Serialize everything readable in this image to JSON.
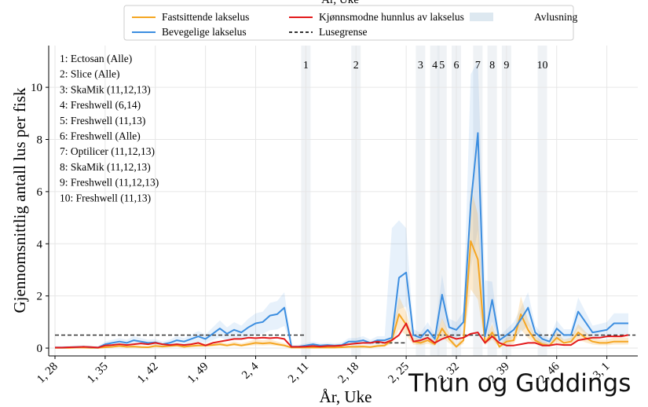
{
  "chart_data": {
    "type": "line",
    "title_partial": "År, Uke",
    "xlabel": "År, Uke",
    "ylabel": "Gjennomsnittlig antall lus per fisk",
    "ylim": [
      -0.3,
      11.6
    ],
    "yticks": [
      0,
      2,
      4,
      6,
      8,
      10
    ],
    "xtick_labels": [
      "1, 28",
      "1, 35",
      "1, 42",
      "1, 49",
      "2, 4",
      "2, 11",
      "2, 18",
      "2, 25",
      "2, 32",
      "2, 39",
      "2, 46",
      "3, 1"
    ],
    "xtick_index": [
      0,
      7,
      14,
      21,
      28,
      35,
      42,
      49,
      56,
      63,
      70,
      77
    ],
    "legend": {
      "position": "top-center",
      "entries": [
        {
          "label": "Fastsittende lakselus",
          "color": "#f5a623",
          "style": "line"
        },
        {
          "label": "Kjønnsmodne hunnlus av lakselus",
          "color": "#e31a1c",
          "style": "line"
        },
        {
          "label": "Avlusning",
          "color": "#dde8f0",
          "style": "patch"
        },
        {
          "label": "Bevegelige lakselus",
          "color": "#3c8ee0",
          "style": "line"
        },
        {
          "label": "Lusegrense",
          "color": "#333333",
          "style": "dashed"
        }
      ]
    },
    "x_index": [
      0,
      1,
      2,
      3,
      4,
      5,
      6,
      7,
      8,
      9,
      10,
      11,
      12,
      13,
      14,
      15,
      16,
      17,
      18,
      19,
      20,
      21,
      22,
      23,
      24,
      25,
      26,
      27,
      28,
      29,
      30,
      31,
      32,
      33,
      34,
      35,
      36,
      37,
      38,
      39,
      40,
      41,
      42,
      43,
      44,
      45,
      46,
      47,
      48,
      49,
      50,
      51,
      52,
      53,
      54,
      55,
      56,
      57,
      58,
      59,
      60,
      61,
      62,
      63,
      64,
      65,
      66,
      67,
      68,
      69,
      70,
      71,
      72,
      73,
      74,
      75,
      76,
      77,
      78,
      79,
      80
    ],
    "series": [
      {
        "name": "Bevegelige lakselus",
        "color": "#3c8ee0",
        "values": [
          0.02,
          0.02,
          0.03,
          0.04,
          0.05,
          0.03,
          0.02,
          0.15,
          0.2,
          0.25,
          0.2,
          0.3,
          0.25,
          0.2,
          0.22,
          0.15,
          0.2,
          0.3,
          0.25,
          0.35,
          0.45,
          0.35,
          0.55,
          0.75,
          0.55,
          0.7,
          0.6,
          0.8,
          0.95,
          1.0,
          1.25,
          1.3,
          1.55,
          0.05,
          0.06,
          0.1,
          0.15,
          0.1,
          0.12,
          0.1,
          0.12,
          0.25,
          0.25,
          0.3,
          0.2,
          0.3,
          0.3,
          0.4,
          2.7,
          2.9,
          0.5,
          0.4,
          0.7,
          0.35,
          2.05,
          0.8,
          0.7,
          1.0,
          5.5,
          8.25,
          0.45,
          1.85,
          0.3,
          0.5,
          0.7,
          1.1,
          1.55,
          0.6,
          0.35,
          0.25,
          0.75,
          0.5,
          0.5,
          1.4,
          1.0,
          0.6,
          0.65,
          0.7,
          0.95,
          0.95,
          0.95
        ]
      },
      {
        "name": "Fastsittende lakselus",
        "color": "#f5a623",
        "values": [
          0.01,
          0.01,
          0.01,
          0.02,
          0.02,
          0.01,
          0.01,
          0.03,
          0.05,
          0.08,
          0.05,
          0.06,
          0.04,
          0.03,
          0.08,
          0.06,
          0.08,
          0.1,
          0.05,
          0.08,
          0.1,
          0.1,
          0.12,
          0.15,
          0.1,
          0.15,
          0.1,
          0.15,
          0.2,
          0.18,
          0.2,
          0.15,
          0.1,
          0.02,
          0.02,
          0.02,
          0.02,
          0.02,
          0.02,
          0.02,
          0.03,
          0.05,
          0.05,
          0.06,
          0.04,
          0.08,
          0.1,
          0.3,
          1.3,
          0.9,
          0.25,
          0.2,
          0.3,
          0.15,
          0.75,
          0.35,
          0.05,
          0.3,
          4.1,
          3.4,
          0.2,
          0.6,
          0.05,
          0.25,
          0.3,
          1.3,
          0.7,
          0.3,
          0.15,
          0.1,
          0.4,
          0.2,
          0.25,
          0.6,
          0.4,
          0.25,
          0.2,
          0.2,
          0.25,
          0.25,
          0.25
        ]
      },
      {
        "name": "Kjønnsmodne hunnlus av lakselus",
        "color": "#e31a1c",
        "values": [
          0.02,
          0.02,
          0.03,
          0.04,
          0.05,
          0.04,
          0.02,
          0.1,
          0.12,
          0.15,
          0.12,
          0.15,
          0.18,
          0.15,
          0.2,
          0.15,
          0.12,
          0.15,
          0.12,
          0.15,
          0.2,
          0.1,
          0.2,
          0.25,
          0.3,
          0.35,
          0.35,
          0.4,
          0.38,
          0.4,
          0.38,
          0.4,
          0.35,
          0.05,
          0.05,
          0.06,
          0.08,
          0.06,
          0.08,
          0.08,
          0.1,
          0.15,
          0.18,
          0.2,
          0.2,
          0.25,
          0.2,
          0.3,
          0.5,
          0.95,
          0.25,
          0.3,
          0.4,
          0.2,
          0.35,
          0.45,
          0.35,
          0.4,
          0.55,
          0.6,
          0.2,
          0.45,
          0.2,
          0.1,
          0.1,
          0.15,
          0.2,
          0.2,
          0.1,
          0.1,
          0.15,
          0.12,
          0.12,
          0.3,
          0.35,
          0.4,
          0.4,
          0.45,
          0.45,
          0.45,
          0.5
        ]
      },
      {
        "name": "Lusegrense",
        "color": "#333333",
        "dashed": true,
        "segments": [
          {
            "x": [
              0,
              35
            ],
            "y": [
              0.5,
              0.5
            ]
          },
          {
            "x": [
              43,
              49
            ],
            "y": [
              0.2,
              0.2
            ]
          },
          {
            "x": [
              49,
              81
            ],
            "y": [
              0.5,
              0.5
            ]
          }
        ]
      }
    ],
    "bands": [
      {
        "series": "Bevegelige lakselus",
        "color": "#3c8ee0",
        "opacity": 0.1,
        "peak_upper": [
          [
            47,
            4.6
          ],
          [
            48,
            4.9
          ],
          [
            49,
            4.6
          ],
          [
            58,
            10.5
          ],
          [
            59,
            11.0
          ],
          [
            60,
            2.6
          ]
        ]
      },
      {
        "series": "Fastsittende lakselus",
        "color": "#f5a623",
        "opacity": 0.2
      }
    ],
    "treatments": [
      {
        "n": "1",
        "x": 35
      },
      {
        "n": "2",
        "x": 42
      },
      {
        "n": "3",
        "x": 51
      },
      {
        "n": "4",
        "x": 53
      },
      {
        "n": "5",
        "x": 54
      },
      {
        "n": "6",
        "x": 56
      },
      {
        "n": "7",
        "x": 59
      },
      {
        "n": "8",
        "x": 61
      },
      {
        "n": "9",
        "x": 63
      },
      {
        "n": "10",
        "x": 68
      }
    ],
    "annotations": [
      "1: Ectosan (Alle)",
      "2: Slice (Alle)",
      "3: SkaMik (11,12,13)",
      "4: Freshwell (6,14)",
      "5: Freshwell (11,13)",
      "6: Freshwell (Alle)",
      "7: Optilicer (11,12,13)",
      "8: SkaMik (11,12,13)",
      "9: Freshwell (11,12,13)",
      "10: Freshwell (11,13)"
    ],
    "grid": true,
    "legend_placement": "top-center"
  },
  "overlay_text": "Thun og Guddings"
}
